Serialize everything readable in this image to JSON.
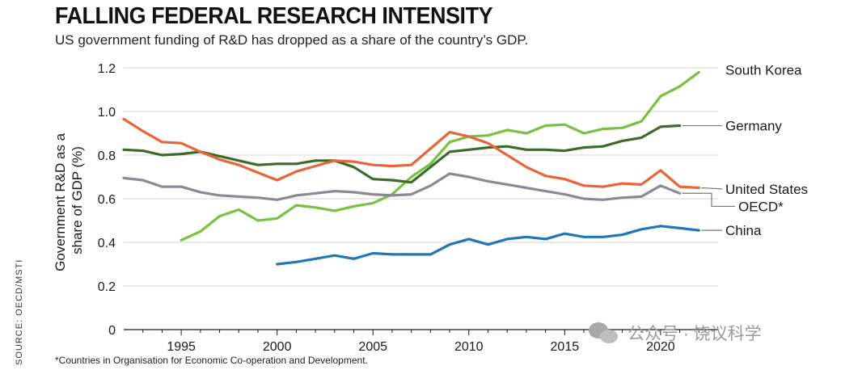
{
  "header": {
    "title": "FALLING FEDERAL RESEARCH INTENSITY",
    "subtitle": "US government funding of R&D has dropped as a share of the country’s GDP."
  },
  "source": "SOURCE: OECD/MSTI",
  "footnote": "*Countries in Organisation for Economic Co-operation and Development.",
  "watermark": {
    "text": "公众号 · 饶议科学",
    "icon": "wechat-icon"
  },
  "chart_data": {
    "type": "line",
    "title": "FALLING FEDERAL RESEARCH INTENSITY",
    "subtitle": "US government funding of R&D has dropped as a share of the country’s GDP.",
    "xlabel": "",
    "ylabel": "Government R&D as a share of GDP (%)",
    "ylabel_lines": [
      "Government R&D as a",
      "share of GDP (%)"
    ],
    "xlim": [
      1992,
      2023
    ],
    "ylim": [
      0,
      1.2
    ],
    "x_ticks": [
      1995,
      2000,
      2005,
      2010,
      2015,
      2020
    ],
    "y_ticks": [
      0,
      0.2,
      0.4,
      0.6,
      0.8,
      1.0,
      1.2
    ],
    "y_tick_labels": [
      "0",
      "0.2",
      "0.4",
      "0.6",
      "0.8",
      "1.0",
      "1.2"
    ],
    "grid": true,
    "legend": "direct-labels-right",
    "series": [
      {
        "name": "South Korea",
        "color": "#7ac143",
        "points": [
          [
            1995,
            0.41
          ],
          [
            1996,
            0.45
          ],
          [
            1997,
            0.52
          ],
          [
            1998,
            0.55
          ],
          [
            1999,
            0.5
          ],
          [
            2000,
            0.51
          ],
          [
            2001,
            0.57
          ],
          [
            2002,
            0.56
          ],
          [
            2003,
            0.545
          ],
          [
            2004,
            0.565
          ],
          [
            2005,
            0.58
          ],
          [
            2006,
            0.62
          ],
          [
            2007,
            0.7
          ],
          [
            2008,
            0.76
          ],
          [
            2009,
            0.86
          ],
          [
            2010,
            0.885
          ],
          [
            2011,
            0.89
          ],
          [
            2012,
            0.915
          ],
          [
            2013,
            0.9
          ],
          [
            2014,
            0.935
          ],
          [
            2015,
            0.94
          ],
          [
            2016,
            0.9
          ],
          [
            2017,
            0.92
          ],
          [
            2018,
            0.925
          ],
          [
            2019,
            0.955
          ],
          [
            2020,
            1.07
          ],
          [
            2021,
            1.115
          ],
          [
            2022,
            1.18
          ]
        ]
      },
      {
        "name": "Germany",
        "color": "#3d6b2a",
        "points": [
          [
            1992,
            0.825
          ],
          [
            1993,
            0.82
          ],
          [
            1994,
            0.8
          ],
          [
            1995,
            0.805
          ],
          [
            1996,
            0.815
          ],
          [
            1997,
            0.795
          ],
          [
            1998,
            0.775
          ],
          [
            1999,
            0.755
          ],
          [
            2000,
            0.76
          ],
          [
            2001,
            0.76
          ],
          [
            2002,
            0.775
          ],
          [
            2003,
            0.775
          ],
          [
            2004,
            0.745
          ],
          [
            2005,
            0.69
          ],
          [
            2006,
            0.685
          ],
          [
            2007,
            0.675
          ],
          [
            2008,
            0.745
          ],
          [
            2009,
            0.815
          ],
          [
            2010,
            0.825
          ],
          [
            2011,
            0.835
          ],
          [
            2012,
            0.84
          ],
          [
            2013,
            0.825
          ],
          [
            2014,
            0.825
          ],
          [
            2015,
            0.82
          ],
          [
            2016,
            0.835
          ],
          [
            2017,
            0.84
          ],
          [
            2018,
            0.865
          ],
          [
            2019,
            0.88
          ],
          [
            2020,
            0.93
          ],
          [
            2021,
            0.935
          ]
        ]
      },
      {
        "name": "United States",
        "color": "#e8653a",
        "points": [
          [
            1992,
            0.965
          ],
          [
            1993,
            0.91
          ],
          [
            1994,
            0.86
          ],
          [
            1995,
            0.855
          ],
          [
            1996,
            0.815
          ],
          [
            1997,
            0.78
          ],
          [
            1998,
            0.755
          ],
          [
            1999,
            0.72
          ],
          [
            2000,
            0.685
          ],
          [
            2001,
            0.725
          ],
          [
            2002,
            0.75
          ],
          [
            2003,
            0.775
          ],
          [
            2004,
            0.77
          ],
          [
            2005,
            0.755
          ],
          [
            2006,
            0.75
          ],
          [
            2007,
            0.755
          ],
          [
            2008,
            0.83
          ],
          [
            2009,
            0.905
          ],
          [
            2010,
            0.885
          ],
          [
            2011,
            0.855
          ],
          [
            2012,
            0.8
          ],
          [
            2013,
            0.745
          ],
          [
            2014,
            0.705
          ],
          [
            2015,
            0.69
          ],
          [
            2016,
            0.66
          ],
          [
            2017,
            0.655
          ],
          [
            2018,
            0.67
          ],
          [
            2019,
            0.665
          ],
          [
            2020,
            0.73
          ],
          [
            2021,
            0.655
          ],
          [
            2022,
            0.65
          ]
        ]
      },
      {
        "name": "OECD*",
        "color": "#8a8a96",
        "points": [
          [
            1992,
            0.695
          ],
          [
            1993,
            0.685
          ],
          [
            1994,
            0.655
          ],
          [
            1995,
            0.655
          ],
          [
            1996,
            0.63
          ],
          [
            1997,
            0.615
          ],
          [
            1998,
            0.61
          ],
          [
            1999,
            0.605
          ],
          [
            2000,
            0.595
          ],
          [
            2001,
            0.615
          ],
          [
            2002,
            0.625
          ],
          [
            2003,
            0.635
          ],
          [
            2004,
            0.63
          ],
          [
            2005,
            0.62
          ],
          [
            2006,
            0.615
          ],
          [
            2007,
            0.62
          ],
          [
            2008,
            0.66
          ],
          [
            2009,
            0.715
          ],
          [
            2010,
            0.7
          ],
          [
            2011,
            0.68
          ],
          [
            2012,
            0.665
          ],
          [
            2013,
            0.65
          ],
          [
            2014,
            0.635
          ],
          [
            2015,
            0.62
          ],
          [
            2016,
            0.6
          ],
          [
            2017,
            0.595
          ],
          [
            2018,
            0.605
          ],
          [
            2019,
            0.61
          ],
          [
            2020,
            0.66
          ],
          [
            2021,
            0.625
          ]
        ]
      },
      {
        "name": "China",
        "color": "#2176b5",
        "points": [
          [
            2000,
            0.3
          ],
          [
            2001,
            0.31
          ],
          [
            2002,
            0.325
          ],
          [
            2003,
            0.34
          ],
          [
            2004,
            0.325
          ],
          [
            2005,
            0.35
          ],
          [
            2006,
            0.345
          ],
          [
            2007,
            0.345
          ],
          [
            2008,
            0.345
          ],
          [
            2009,
            0.39
          ],
          [
            2010,
            0.415
          ],
          [
            2011,
            0.39
          ],
          [
            2012,
            0.415
          ],
          [
            2013,
            0.425
          ],
          [
            2014,
            0.415
          ],
          [
            2015,
            0.44
          ],
          [
            2016,
            0.425
          ],
          [
            2017,
            0.425
          ],
          [
            2018,
            0.435
          ],
          [
            2019,
            0.46
          ],
          [
            2020,
            0.475
          ],
          [
            2021,
            0.465
          ],
          [
            2022,
            0.455
          ]
        ]
      }
    ]
  }
}
